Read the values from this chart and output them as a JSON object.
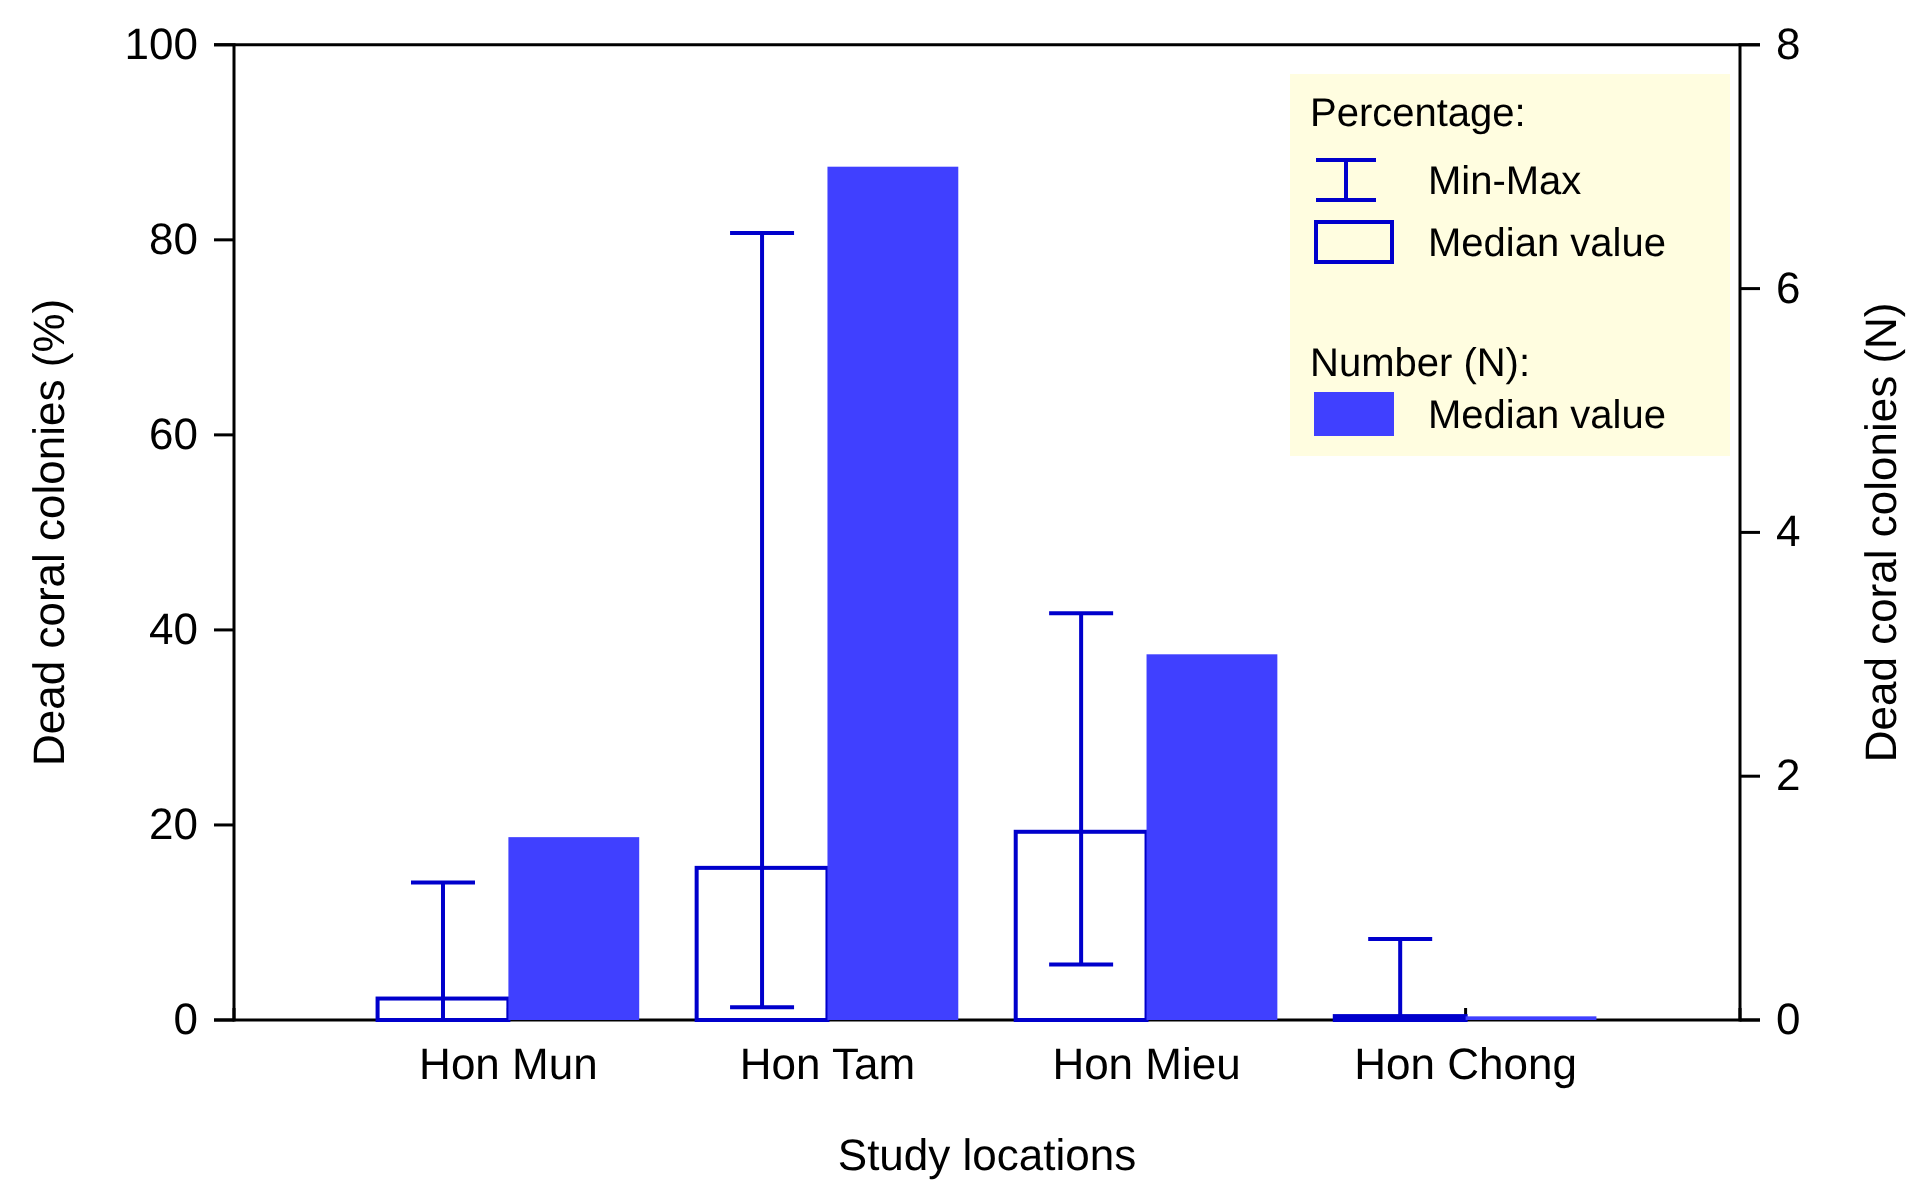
{
  "chart_data": {
    "type": "bar",
    "xlabel": "Study locations",
    "ylabel": "Dead coral colonies (%)",
    "y2label": "Dead coral colonies (N)",
    "categories": [
      "Hon Mun",
      "Hon Tam",
      "Hon Mieu",
      "Hon Chong"
    ],
    "series": [
      {
        "name": "Median value",
        "color": "#0000cc",
        "values": [
          2.2,
          15.6,
          19.3,
          0.4
        ],
        "errors": [
          [
            0,
            14.1
          ],
          [
            1.3,
            80.7
          ],
          [
            5.7,
            41.7
          ],
          [
            0,
            8.3
          ]
        ]
      },
      {
        "name": "Median value",
        "color": "#4040ff",
        "axis": "y2",
        "values": [
          1.5,
          7.0,
          3.0,
          0.03
        ]
      }
    ],
    "ylim": [
      0,
      100
    ],
    "yticks": [
      0,
      20,
      40,
      60,
      80,
      100
    ],
    "y2lim": [
      0,
      8
    ],
    "y2ticks": [
      0,
      2,
      4,
      6,
      8
    ],
    "legend": "top right",
    "annotations": [
      "Percentage:",
      "Min-Max",
      "Number (N):"
    ]
  }
}
